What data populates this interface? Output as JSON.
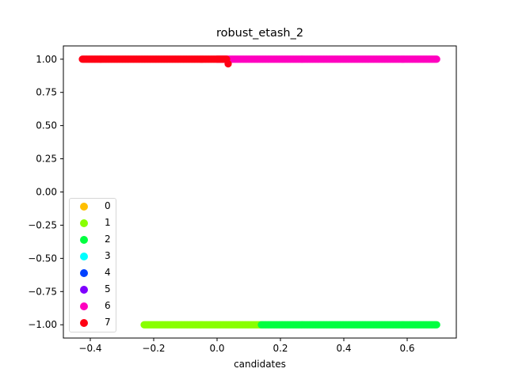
{
  "chart_data": {
    "type": "scatter",
    "title": "robust_etash_2",
    "xlabel": "candidates",
    "ylabel": "",
    "xlim": [
      -0.485,
      0.755
    ],
    "ylim": [
      -1.1,
      1.1
    ],
    "xticks": [
      -0.4,
      -0.2,
      0.0,
      0.2,
      0.4,
      0.6
    ],
    "xtick_labels": [
      "−0.4",
      "−0.2",
      "0.0",
      "0.2",
      "0.4",
      "0.6"
    ],
    "yticks": [
      1.0,
      0.75,
      0.5,
      0.25,
      0.0,
      -0.25,
      -0.5,
      -0.75,
      -1.0
    ],
    "ytick_labels": [
      "1.00",
      "0.75",
      "0.50",
      "0.25",
      "0.00",
      "−0.25",
      "−0.50",
      "−0.75",
      "−1.00"
    ],
    "grid": false,
    "legend_position": "lower-left",
    "series": [
      {
        "name": "0",
        "color": "#ffbf00",
        "segments": []
      },
      {
        "name": "1",
        "color": "#89ff00",
        "segments": [
          {
            "x_start": -0.23,
            "x_end": 0.14,
            "y": -1.0
          }
        ]
      },
      {
        "name": "2",
        "color": "#00ff40",
        "segments": [
          {
            "x_start": 0.14,
            "x_end": 0.695,
            "y": -1.0
          }
        ]
      },
      {
        "name": "3",
        "color": "#00ffff",
        "segments": []
      },
      {
        "name": "4",
        "color": "#0040ff",
        "segments": []
      },
      {
        "name": "5",
        "color": "#7f00ff",
        "segments": []
      },
      {
        "name": "6",
        "color": "#ff00bf",
        "segments": [
          {
            "x_start": 0.0,
            "x_end": 0.695,
            "y": 1.0
          }
        ]
      },
      {
        "name": "7",
        "color": "#ff0014",
        "segments": [
          {
            "x_start": -0.425,
            "x_end": 0.03,
            "y": 1.0
          }
        ],
        "points": [
          {
            "x": 0.035,
            "y": 0.965
          }
        ]
      }
    ]
  }
}
